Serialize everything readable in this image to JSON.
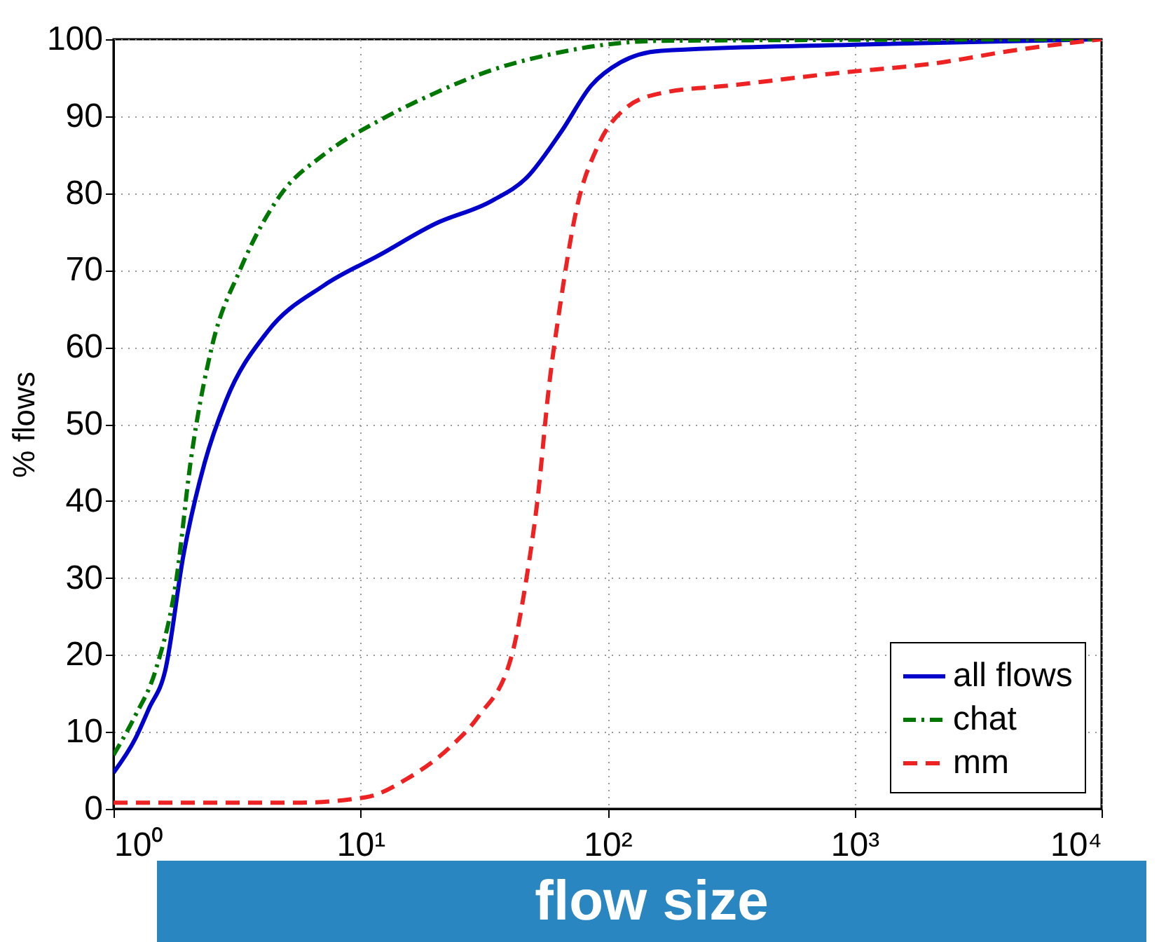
{
  "chart_data": {
    "type": "line",
    "xlabel": "flow size",
    "ylabel": "% flows",
    "log": "x",
    "grid": true,
    "legend": "bottom right",
    "xlim": [
      1,
      10000
    ],
    "ylim": [
      0,
      100
    ],
    "xticks": [
      {
        "value": 1,
        "label": "10⁰"
      },
      {
        "value": 10,
        "label": "10¹"
      },
      {
        "value": 100,
        "label": "10²"
      },
      {
        "value": 1000,
        "label": "10³"
      },
      {
        "value": 10000,
        "label": "10⁴"
      }
    ],
    "yticks": [
      0,
      10,
      20,
      30,
      40,
      50,
      60,
      70,
      80,
      90,
      100
    ],
    "series": [
      {
        "name": "all flows",
        "color": "#0000cc",
        "line_style": "solid",
        "x": [
          1,
          1.22,
          1.39,
          1.62,
          1.92,
          2.34,
          2.85,
          4.2,
          7.1,
          12,
          20,
          34,
          47,
          65,
          86,
          113,
          165,
          1000,
          10000
        ],
        "values": [
          4.7,
          9,
          13,
          18,
          33,
          45,
          53,
          62,
          68,
          72,
          76,
          79,
          82,
          88,
          94,
          97,
          98.5,
          99.3,
          100
        ]
      },
      {
        "name": "chat",
        "color": "#007700",
        "line_style": "dashdot",
        "x": [
          1,
          1.22,
          1.48,
          1.8,
          2.05,
          2.5,
          3.25,
          4.8,
          7.1,
          12,
          20,
          34,
          58,
          98,
          165,
          10000
        ],
        "values": [
          7,
          12,
          18,
          30,
          45,
          60,
          70,
          80,
          85,
          89.5,
          93,
          96,
          98,
          99.3,
          99.8,
          100
        ]
      },
      {
        "name": "mm",
        "color": "#ee2222",
        "line_style": "dashed",
        "x": [
          1,
          5.5,
          10.5,
          15.6,
          23,
          30,
          41,
          47,
          52,
          58,
          64,
          75,
          91,
          118,
          165,
          316,
          790,
          2260,
          4300,
          10000
        ],
        "values": [
          0.8,
          0.8,
          1.5,
          4,
          8,
          12,
          20,
          30,
          40,
          55,
          65,
          78,
          86,
          91,
          93,
          94,
          95.5,
          97,
          98.5,
          100
        ]
      }
    ]
  }
}
